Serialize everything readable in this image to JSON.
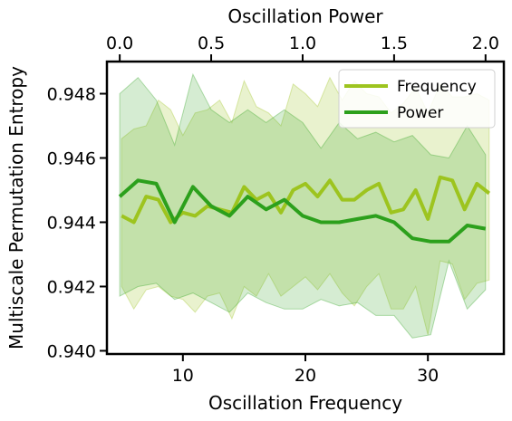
{
  "chart_data": {
    "type": "line",
    "title": "",
    "xlabel": "Oscillation Frequency",
    "ylabel": "Multiscale Permutation Entropy",
    "top_xlabel": "Oscillation Power",
    "xlim": [
      3.8,
      36.2
    ],
    "ylim": [
      0.9399,
      0.949
    ],
    "top_xlim": [
      -0.07,
      2.1
    ],
    "xticks": [
      10,
      20,
      30
    ],
    "yticks": [
      0.94,
      0.942,
      0.944,
      0.946,
      0.948
    ],
    "top_xticks": [
      0.0,
      0.5,
      1.0,
      1.5,
      2.0
    ],
    "xtick_labels": [
      "10",
      "20",
      "30"
    ],
    "ytick_labels": [
      "0.940",
      "0.942",
      "0.944",
      "0.946",
      "0.948"
    ],
    "top_xtick_labels": [
      "0.0",
      "0.5",
      "1.0",
      "1.5",
      "2.0"
    ],
    "legend_position": "top-right",
    "grid": false,
    "series": [
      {
        "name": "Frequency",
        "color": "#9dc41f",
        "axis": "bottom",
        "x": [
          5,
          6,
          7,
          8,
          9,
          10,
          11,
          12,
          13,
          14,
          15,
          16,
          17,
          18,
          19,
          20,
          21,
          22,
          23,
          24,
          25,
          26,
          27,
          28,
          29,
          30,
          31,
          32,
          33,
          34,
          35
        ],
        "y": [
          0.9442,
          0.944,
          0.9448,
          0.9447,
          0.944,
          0.9443,
          0.9442,
          0.9445,
          0.9444,
          0.9443,
          0.9451,
          0.9447,
          0.9449,
          0.9443,
          0.945,
          0.9452,
          0.9448,
          0.9453,
          0.9447,
          0.9447,
          0.945,
          0.9452,
          0.9443,
          0.9444,
          0.945,
          0.9441,
          0.9454,
          0.9453,
          0.9444,
          0.9452,
          0.9449
        ],
        "upper": [
          0.9466,
          0.9469,
          0.947,
          0.9478,
          0.9475,
          0.9467,
          0.9474,
          0.9475,
          0.9478,
          0.9471,
          0.9484,
          0.9476,
          0.9474,
          0.947,
          0.9483,
          0.948,
          0.9476,
          0.9485,
          0.9478,
          0.9484,
          0.948,
          0.9479,
          0.9474,
          0.9477,
          0.9482,
          0.9474,
          0.9483,
          0.9479,
          0.9479,
          0.948,
          0.9478
        ],
        "lower": [
          0.942,
          0.9413,
          0.9419,
          0.942,
          0.9417,
          0.9416,
          0.9412,
          0.9417,
          0.9418,
          0.941,
          0.942,
          0.9417,
          0.9424,
          0.9417,
          0.942,
          0.9423,
          0.9419,
          0.9424,
          0.9418,
          0.9414,
          0.942,
          0.9424,
          0.9413,
          0.9413,
          0.942,
          0.9405,
          0.9428,
          0.9427,
          0.9416,
          0.9421,
          0.9422
        ]
      },
      {
        "name": "Power",
        "color": "#2ca01c",
        "axis": "top",
        "x": [
          0.0,
          0.1,
          0.2,
          0.3,
          0.4,
          0.5,
          0.6,
          0.7,
          0.8,
          0.9,
          1.0,
          1.1,
          1.2,
          1.3,
          1.4,
          1.5,
          1.6,
          1.7,
          1.8,
          1.9,
          2.0
        ],
        "y": [
          0.9448,
          0.9453,
          0.9452,
          0.944,
          0.9451,
          0.9445,
          0.9442,
          0.9448,
          0.9444,
          0.9447,
          0.9442,
          0.944,
          0.944,
          0.9441,
          0.9442,
          0.944,
          0.9435,
          0.9434,
          0.9434,
          0.9439,
          0.9438
        ],
        "upper": [
          0.948,
          0.9485,
          0.9478,
          0.9464,
          0.9486,
          0.9475,
          0.9471,
          0.9475,
          0.9471,
          0.9475,
          0.9471,
          0.9463,
          0.9471,
          0.9466,
          0.9468,
          0.9465,
          0.9467,
          0.9461,
          0.946,
          0.947,
          0.9461
        ],
        "lower": [
          0.9417,
          0.942,
          0.9421,
          0.9416,
          0.9418,
          0.9415,
          0.9412,
          0.9418,
          0.9415,
          0.9413,
          0.9413,
          0.9416,
          0.9414,
          0.9415,
          0.9411,
          0.9411,
          0.9404,
          0.9405,
          0.9428,
          0.9413,
          0.9419
        ]
      }
    ]
  }
}
